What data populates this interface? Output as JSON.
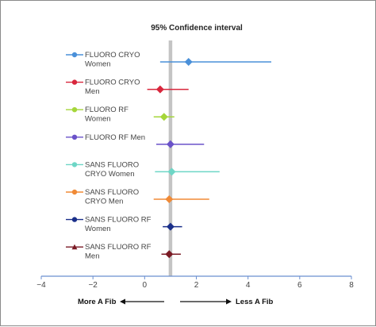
{
  "chart_data": {
    "type": "forest",
    "title": "95% Confidence interval",
    "xlabel": "",
    "ylabel": "",
    "xlim": [
      -4,
      8
    ],
    "xticks": [
      -4,
      -2,
      0,
      2,
      4,
      6,
      8
    ],
    "xtick_labels": [
      "−4",
      "−2",
      "0",
      "2",
      "4",
      "6",
      "8"
    ],
    "reference_line_x": 1,
    "grid": false,
    "legend_position": "left",
    "series": [
      {
        "name_lines": [
          "FLUORO CRYO",
          "Women"
        ],
        "estimate": 1.7,
        "ci": [
          0.6,
          4.9
        ],
        "color": "#4a90d9",
        "marker": "diamond"
      },
      {
        "name_lines": [
          "FLUORO CRYO",
          "Men"
        ],
        "estimate": 0.6,
        "ci": [
          0.1,
          1.7
        ],
        "color": "#d8263c",
        "marker": "diamond"
      },
      {
        "name_lines": [
          "FLUORO RF",
          "Women"
        ],
        "estimate": 0.75,
        "ci": [
          0.35,
          1.15
        ],
        "color": "#a5d63a",
        "marker": "diamond"
      },
      {
        "name_lines": [
          "FLUORO RF Men"
        ],
        "estimate": 1.0,
        "ci": [
          0.45,
          2.3
        ],
        "color": "#6a52c9",
        "marker": "diamond"
      },
      {
        "name_lines": [
          "SANS FLUORO",
          "CRYO Women"
        ],
        "estimate": 1.05,
        "ci": [
          0.4,
          2.9
        ],
        "color": "#6ed6c6",
        "marker": "diamond"
      },
      {
        "name_lines": [
          "SANS FLUORO",
          "CRYO Men"
        ],
        "estimate": 0.95,
        "ci": [
          0.35,
          2.5
        ],
        "color": "#f08a36",
        "marker": "diamond"
      },
      {
        "name_lines": [
          "SANS FLUORO RF",
          "Women"
        ],
        "estimate": 1.0,
        "ci": [
          0.7,
          1.45
        ],
        "color": "#1a2f8a",
        "marker": "diamond"
      },
      {
        "name_lines": [
          "SANS FLUORO RF",
          "Men"
        ],
        "estimate": 0.95,
        "ci": [
          0.65,
          1.4
        ],
        "color": "#7a1a24",
        "marker": "triangle"
      }
    ],
    "annotations": {
      "left": "More A Fib",
      "right": "Less A Fib"
    }
  }
}
